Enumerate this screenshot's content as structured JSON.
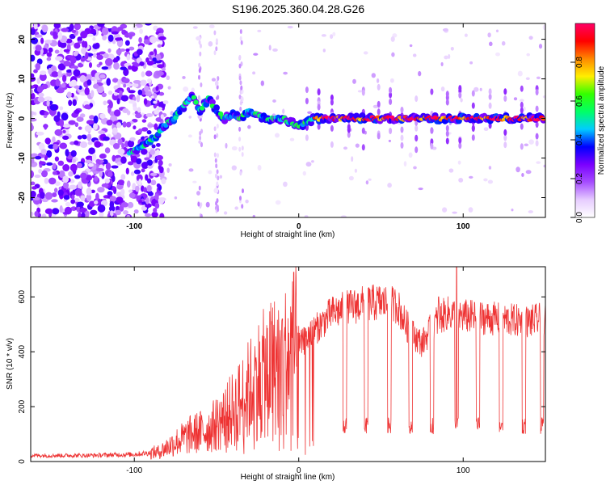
{
  "title": "S196.2025.360.04.28.G26",
  "chart_data": [
    {
      "type": "heatmap",
      "xlabel": "Height of straight line (km)",
      "ylabel": "Frequency (Hz)",
      "xlim": [
        -163,
        150
      ],
      "ylim": [
        -25,
        24
      ],
      "xticks": [
        "-100",
        "0",
        "100"
      ],
      "xtick_values": [
        -100,
        0,
        100
      ],
      "yticks": [
        "-20",
        "-10",
        "0",
        "10",
        "20"
      ],
      "ytick_values": [
        -20,
        -10,
        0,
        10,
        20
      ],
      "colorbar": {
        "label": "Normalized spectral amplitude",
        "range": [
          0,
          1
        ],
        "ticks": [
          "0.0",
          "0.2",
          "0.4",
          "0.6",
          "0.8"
        ],
        "tick_values": [
          0,
          0.2,
          0.4,
          0.6,
          0.8
        ],
        "colors": [
          "#ffffff",
          "#e6ccff",
          "#a64dff",
          "#7a00ff",
          "#0000ff",
          "#00ccff",
          "#00ff66",
          "#33ff00",
          "#ffee00",
          "#ff8800",
          "#ff0000",
          "#ff0066"
        ]
      },
      "features": {
        "noise_region_x": [
          -163,
          -90
        ],
        "rising_ridge": [
          [
            -103,
            -9
          ],
          [
            -95,
            -7
          ],
          [
            -88,
            -5
          ],
          [
            -82,
            -2
          ],
          [
            -76,
            0
          ],
          [
            -70,
            3
          ],
          [
            -65,
            6
          ],
          [
            -60,
            2
          ],
          [
            -55,
            5
          ],
          [
            -50,
            2
          ],
          [
            -45,
            0
          ],
          [
            -40,
            1
          ],
          [
            -35,
            0
          ],
          [
            -30,
            2
          ],
          [
            -20,
            0
          ],
          [
            -10,
            0
          ],
          [
            0,
            -2
          ],
          [
            10,
            0
          ],
          [
            150,
            0
          ]
        ],
        "steady_tone_start_x": 10,
        "steady_tone_frequency": 0
      }
    },
    {
      "type": "line",
      "xlabel": "Height of straight line (km)",
      "ylabel": "SNR (10 * v/v)",
      "xlim": [
        -163,
        150
      ],
      "ylim": [
        0,
        710
      ],
      "xticks": [
        "-100",
        "0",
        "100"
      ],
      "xtick_values": [
        -100,
        0,
        100
      ],
      "yticks": [
        "0",
        "200",
        "400",
        "600"
      ],
      "ytick_values": [
        0,
        200,
        400,
        600
      ],
      "series": [
        {
          "name": "SNR",
          "color": "#ee3333",
          "profile": [
            [
              -163,
              22
            ],
            [
              -130,
              22
            ],
            [
              -100,
              26
            ],
            [
              -85,
              35
            ],
            [
              -75,
              70
            ],
            [
              -65,
              100
            ],
            [
              -55,
              115
            ],
            [
              -45,
              160
            ],
            [
              -35,
              220
            ],
            [
              -25,
              300
            ],
            [
              -15,
              350
            ],
            [
              -5,
              380
            ],
            [
              0,
              420
            ],
            [
              10,
              480
            ],
            [
              20,
              540
            ],
            [
              30,
              560
            ],
            [
              40,
              575
            ],
            [
              50,
              580
            ],
            [
              60,
              570
            ],
            [
              65,
              500
            ],
            [
              70,
              460
            ],
            [
              75,
              430
            ],
            [
              80,
              480
            ],
            [
              85,
              520
            ],
            [
              90,
              540
            ],
            [
              100,
              530
            ],
            [
              110,
              525
            ],
            [
              120,
              520
            ],
            [
              130,
              515
            ],
            [
              140,
              510
            ],
            [
              150,
              520
            ]
          ],
          "dips_x": [
            28,
            41,
            55,
            68,
            81,
            96,
            109,
            123,
            137,
            148
          ],
          "dip_floor": 100,
          "spikes": [
            [
              -3,
              690
            ],
            [
              -10,
              520
            ],
            [
              96,
              710
            ],
            [
              58,
              595
            ],
            [
              85,
              600
            ]
          ]
        }
      ]
    }
  ]
}
